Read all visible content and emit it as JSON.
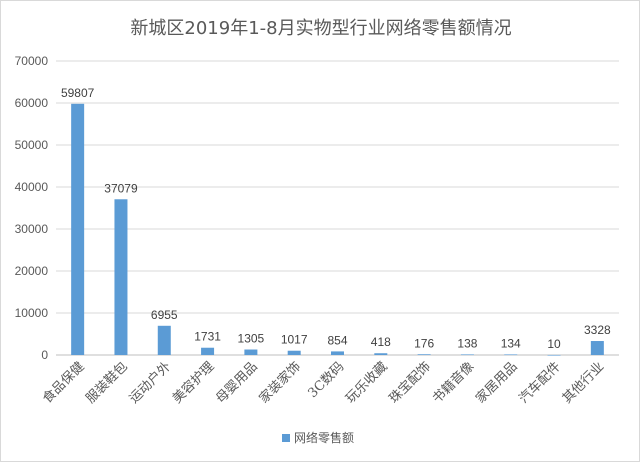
{
  "chart_data": {
    "type": "bar",
    "title": "新城区2019年1-8月实物型行业网络零售额情况",
    "categories": [
      "食品保健",
      "服装鞋包",
      "运动户外",
      "美容护理",
      "母婴用品",
      "家装家饰",
      "3C数码",
      "玩乐收藏",
      "珠宝配饰",
      "书籍音像",
      "家居用品",
      "汽车配件",
      "其他行业"
    ],
    "series": [
      {
        "name": "网络零售额",
        "values": [
          59807,
          37079,
          6955,
          1731,
          1305,
          1017,
          854,
          418,
          176,
          138,
          134,
          10,
          3328
        ]
      }
    ],
    "value_labels": [
      "59807",
      "37079",
      "6955",
      "1731",
      "1305",
      "1017",
      "854",
      "418",
      "176",
      "138",
      "134",
      "10",
      "3328"
    ],
    "y_ticks": [
      "0",
      "10000",
      "20000",
      "30000",
      "40000",
      "50000",
      "60000",
      "70000"
    ],
    "ylim": [
      0,
      70000
    ],
    "xlabel": "",
    "ylabel": "",
    "grid": true,
    "legend_position": "bottom",
    "bar_color": "#5b9bd5"
  }
}
